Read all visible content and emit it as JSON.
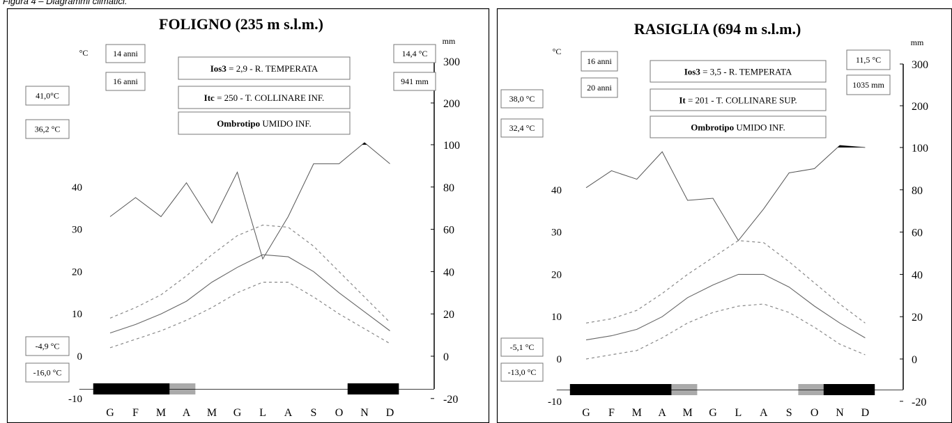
{
  "caption": "Figura 4 – Diagrammi climatici.",
  "chart_data": [
    {
      "type": "line",
      "title": "FOLIGNO (235 m s.l.m.)",
      "y_left_unit": "°C",
      "y_right_unit": "mm",
      "categories": [
        "G",
        "F",
        "M",
        "A",
        "M",
        "G",
        "L",
        "A",
        "S",
        "O",
        "N",
        "D"
      ],
      "y_left_ticks": [
        "-10",
        "0",
        "10",
        "20",
        "30",
        "40"
      ],
      "y_right_ticks": [
        "-20",
        "0",
        "20",
        "40",
        "60",
        "80",
        "100",
        "200",
        "300"
      ],
      "ylim_temperature": [
        -10,
        40
      ],
      "grid": false,
      "series": [
        {
          "values": [
            66,
            75,
            66,
            82,
            63,
            87,
            46,
            66,
            91,
            91,
            101,
            91
          ]
        },
        {
          "values": [
            9,
            11.5,
            14.5,
            19,
            24,
            28.5,
            31,
            30.5,
            26,
            20,
            14,
            8
          ]
        },
        {
          "values": [
            5.5,
            7.5,
            10,
            13,
            17.5,
            21,
            24,
            23.5,
            20,
            15,
            10.5,
            6
          ]
        },
        {
          "values": [
            2,
            4,
            6,
            8.5,
            11.5,
            15,
            17.5,
            17.5,
            14,
            10,
            6.5,
            3
          ]
        }
      ],
      "frost_bar": [
        "certain",
        "certain",
        "certain",
        "probable",
        "none",
        "none",
        "none",
        "none",
        "none",
        "none",
        "certain",
        "certain"
      ],
      "boxes_left": [
        "41,0°C",
        "36,2 °C",
        "-4,9 °C",
        "-16,0 °C"
      ],
      "boxes_top": [
        "14 anni",
        "16 anni"
      ],
      "boxes_right": [
        "14,4 °C",
        "941 mm"
      ],
      "indices": [
        {
          "key": "Ios3",
          "rest": " = 2,9 - R. TEMPERATA"
        },
        {
          "key": "Itc",
          "rest": " = 250 - T. COLLINARE INF."
        },
        {
          "key": "Ombrotipo",
          "rest": " UMIDO INF."
        }
      ]
    },
    {
      "type": "line",
      "title": "RASIGLIA (694 m s.l.m.)",
      "y_left_unit": "°C",
      "y_right_unit": "mm",
      "categories": [
        "G",
        "F",
        "M",
        "A",
        "M",
        "G",
        "L",
        "A",
        "S",
        "O",
        "N",
        "D"
      ],
      "y_left_ticks": [
        "-10",
        "0",
        "10",
        "20",
        "30",
        "40"
      ],
      "y_right_ticks": [
        "-20",
        "0",
        "20",
        "40",
        "60",
        "80",
        "100",
        "200",
        "300"
      ],
      "ylim_temperature": [
        -10,
        40
      ],
      "grid": false,
      "series": [
        {
          "values": [
            81,
            89,
            85,
            98,
            75,
            76,
            56,
            71,
            88,
            90,
            101,
            100
          ]
        },
        {
          "values": [
            8.5,
            9.5,
            11.5,
            15.5,
            20,
            24,
            28,
            27.5,
            23,
            18,
            13,
            8.5
          ]
        },
        {
          "values": [
            4.5,
            5.5,
            7,
            10,
            14.5,
            17.5,
            20,
            20,
            17,
            12.5,
            8.5,
            5
          ]
        },
        {
          "values": [
            0,
            1,
            2,
            5,
            8.5,
            11,
            12.5,
            13,
            11,
            7.5,
            3.5,
            1
          ]
        }
      ],
      "frost_bar": [
        "certain",
        "certain",
        "certain",
        "certain",
        "probable",
        "none",
        "none",
        "none",
        "none",
        "probable",
        "certain",
        "certain"
      ],
      "boxes_left": [
        "38,0 °C",
        "32,4 °C",
        "-5,1 °C",
        "-13,0 °C"
      ],
      "boxes_top": [
        "16 anni",
        "20 anni"
      ],
      "boxes_right": [
        "11,5 °C",
        "1035 mm"
      ],
      "indices": [
        {
          "key": "Ios3",
          "rest": " = 3,5 - R. TEMPERATA"
        },
        {
          "key": "It",
          "rest": " = 201 - T. COLLINARE SUP."
        },
        {
          "key": "Ombrotipo",
          "rest": " UMIDO INF."
        }
      ]
    }
  ]
}
